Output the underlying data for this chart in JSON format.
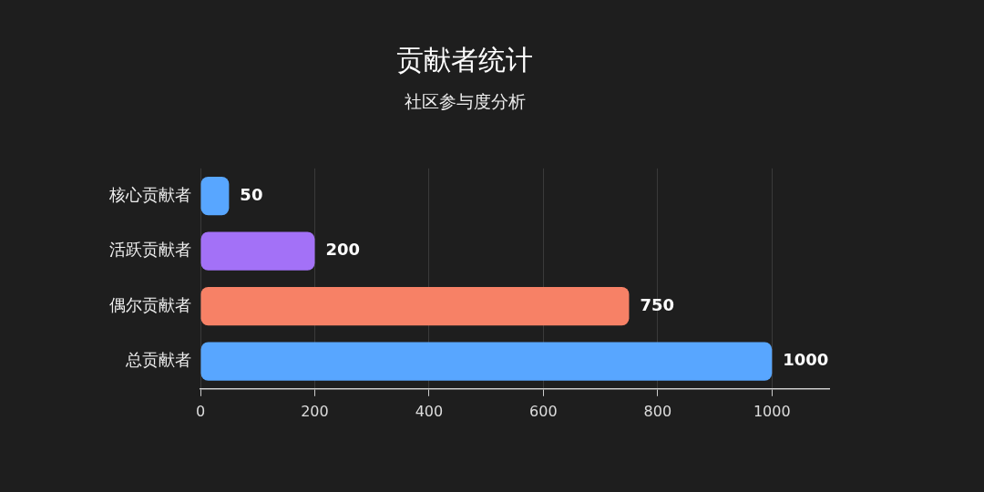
{
  "chart_data": {
    "type": "bar",
    "orientation": "horizontal",
    "title": "贡献者统计",
    "subtitle": "社区参与度分析",
    "categories": [
      "核心贡献者",
      "活跃贡献者",
      "偶尔贡献者",
      "总贡献者"
    ],
    "values": [
      50,
      200,
      750,
      1000
    ],
    "colors": [
      "#58a6ff",
      "#a371f7",
      "#f78166",
      "#58a6ff"
    ],
    "xlim": [
      0,
      1100
    ],
    "xticks": [
      0,
      200,
      400,
      600,
      800,
      1000
    ],
    "grid": "x",
    "legend": false,
    "data_labels": true
  }
}
